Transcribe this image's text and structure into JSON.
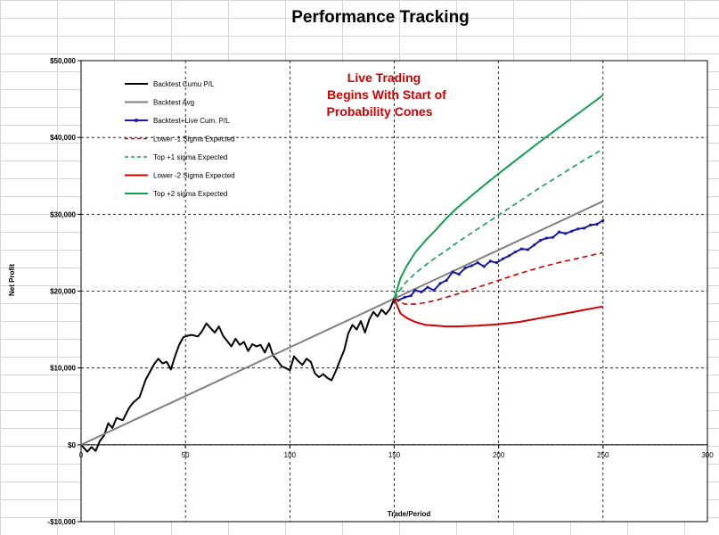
{
  "chart_data": {
    "type": "line",
    "title": "Performance Tracking",
    "xlabel": "Trade/Period",
    "ylabel": "Net Profit",
    "xlim": [
      0,
      300
    ],
    "ylim": [
      -10000,
      50000
    ],
    "x_ticks": [
      0,
      50,
      100,
      150,
      200,
      250,
      300
    ],
    "x_tick_labels": [
      "0",
      "50",
      "100",
      "150",
      "200",
      "250",
      "300"
    ],
    "y_ticks": [
      -10000,
      0,
      10000,
      20000,
      30000,
      40000,
      50000
    ],
    "y_tick_labels": [
      "-$10,000",
      "$0",
      "$10,000",
      "$20,000",
      "$30,000",
      "$40,000",
      "$50,000"
    ],
    "grid": true,
    "legend_position": "top-left",
    "annotation": [
      "Live Trading",
      "Begins With Start of",
      "Probability Cones"
    ],
    "series": [
      {
        "name": "Backtest Cumu P/L",
        "color": "#000000",
        "style": "solid",
        "x": [
          0,
          3,
          5,
          7,
          9,
          11,
          13,
          15,
          17,
          20,
          23,
          25,
          28,
          31,
          33,
          35,
          37,
          39,
          41,
          43,
          45,
          47,
          49,
          51,
          53,
          56,
          58,
          60,
          62,
          64,
          66,
          68,
          70,
          72,
          74,
          76,
          78,
          80,
          82,
          84,
          86,
          88,
          90,
          92,
          94,
          96,
          98,
          100,
          102,
          104,
          106,
          108,
          110,
          112,
          114,
          116,
          118,
          120,
          122,
          124,
          126,
          128,
          130,
          132,
          134,
          136,
          138,
          140,
          142,
          144,
          146,
          148,
          150
        ],
        "y": [
          0,
          -900,
          -300,
          -800,
          500,
          1200,
          2800,
          2200,
          3500,
          3200,
          4800,
          5500,
          6200,
          8500,
          9500,
          10500,
          11200,
          10600,
          10800,
          9800,
          11500,
          13000,
          14000,
          14200,
          14300,
          14100,
          14800,
          15800,
          15200,
          14600,
          15400,
          14200,
          13500,
          12800,
          13800,
          13000,
          13400,
          12200,
          13100,
          12800,
          13000,
          12000,
          13200,
          11600,
          11000,
          10200,
          10000,
          9700,
          11500,
          10900,
          10400,
          11200,
          10800,
          9300,
          8800,
          9200,
          8700,
          8400,
          9600,
          11000,
          12300,
          14500,
          15600,
          15000,
          16100,
          14600,
          16300,
          17300,
          16700,
          17600,
          17000,
          17700,
          19000
        ]
      },
      {
        "name": "Backtest Avg",
        "color": "#808080",
        "style": "solid",
        "x": [
          0,
          250
        ],
        "y": [
          0,
          31700
        ]
      },
      {
        "name": "Backtest+Live Cum. P/L",
        "color": "#1a1aa0",
        "style": "solid-markers",
        "x": [
          150,
          152,
          155,
          158,
          160,
          163,
          166,
          169,
          172,
          175,
          178,
          181,
          184,
          187,
          190,
          193,
          196,
          199,
          202,
          205,
          208,
          211,
          214,
          217,
          220,
          223,
          226,
          229,
          232,
          235,
          238,
          241,
          244,
          247,
          250
        ],
        "y": [
          19000,
          18800,
          19200,
          19400,
          20100,
          19900,
          20500,
          20100,
          21000,
          21400,
          22500,
          22200,
          23000,
          23300,
          23700,
          23200,
          23900,
          23700,
          24200,
          24600,
          25100,
          25500,
          25400,
          26000,
          26600,
          26900,
          27000,
          27700,
          27500,
          27800,
          28100,
          28200,
          28600,
          28700,
          29200
        ]
      },
      {
        "name": "Lower -1 Sigma Expected",
        "color": "#d00000",
        "style": "dashed",
        "x": [
          150,
          155,
          160,
          165,
          170,
          175,
          180,
          190,
          200,
          210,
          220,
          230,
          240,
          250
        ],
        "y": [
          19000,
          18300,
          18300,
          18500,
          18800,
          19200,
          19600,
          20500,
          21400,
          22300,
          23100,
          23800,
          24400,
          25000
        ]
      },
      {
        "name": "Top +1 sigma Expected",
        "color": "#10a050",
        "style": "dashed",
        "x": [
          150,
          155,
          160,
          165,
          170,
          175,
          180,
          190,
          200,
          210,
          220,
          230,
          240,
          250
        ],
        "y": [
          19000,
          21000,
          22300,
          23400,
          24400,
          25300,
          26300,
          28100,
          29900,
          31700,
          33500,
          35200,
          36900,
          38500
        ]
      },
      {
        "name": "Lower -2 Sigma Expected",
        "color": "#d00000",
        "style": "solid",
        "x": [
          150,
          153,
          156,
          160,
          165,
          170,
          175,
          180,
          190,
          200,
          210,
          220,
          230,
          240,
          250
        ],
        "y": [
          19000,
          17100,
          16500,
          16000,
          15600,
          15500,
          15400,
          15400,
          15500,
          15700,
          16000,
          16500,
          17000,
          17500,
          18000
        ]
      },
      {
        "name": "Top +2 sigma Expected",
        "color": "#10a050",
        "style": "solid",
        "x": [
          150,
          153,
          156,
          160,
          165,
          170,
          175,
          180,
          190,
          200,
          210,
          220,
          230,
          240,
          250
        ],
        "y": [
          19000,
          21700,
          23300,
          25000,
          26600,
          28000,
          29500,
          30800,
          33100,
          35300,
          37400,
          39500,
          41500,
          43500,
          45500
        ]
      }
    ]
  }
}
